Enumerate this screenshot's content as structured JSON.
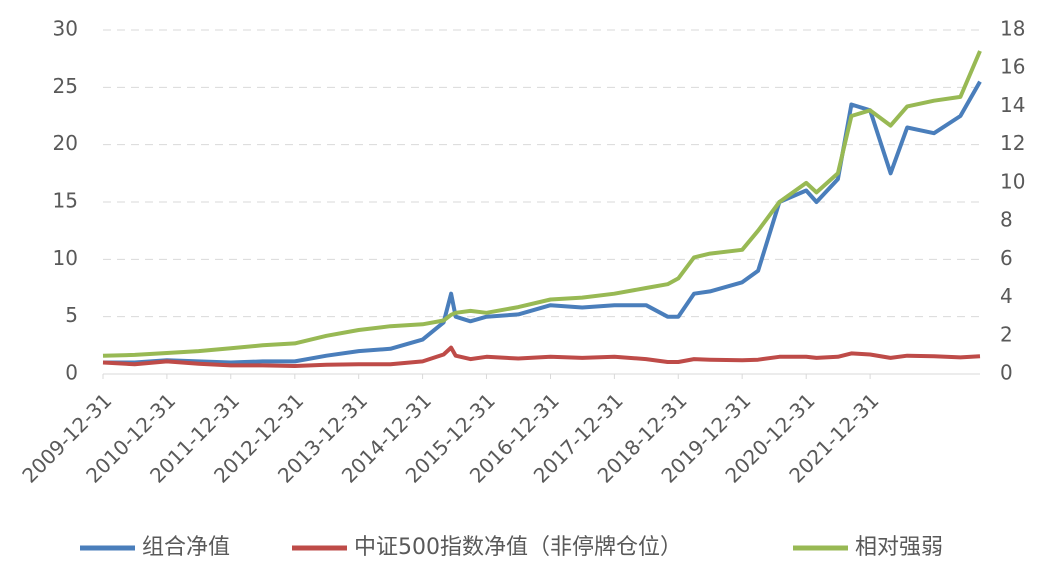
{
  "chart_data": {
    "type": "line",
    "x": [
      "2009-12-31",
      "2010-06-30",
      "2010-12-31",
      "2011-06-30",
      "2011-12-31",
      "2012-06-30",
      "2012-12-31",
      "2013-06-30",
      "2013-12-31",
      "2014-06-30",
      "2014-12-31",
      "2015-04-30",
      "2015-06-12",
      "2015-07-08",
      "2015-09-30",
      "2015-12-31",
      "2016-06-30",
      "2016-12-31",
      "2017-06-30",
      "2017-12-31",
      "2018-06-30",
      "2018-10-31",
      "2018-12-31",
      "2019-03-31",
      "2019-06-30",
      "2019-12-31",
      "2020-03-31",
      "2020-07-31",
      "2020-12-31",
      "2021-02-28",
      "2021-06-30",
      "2021-09-15",
      "2021-12-31",
      "2022-04-27",
      "2022-07-31",
      "2022-12-31",
      "2023-05-31",
      "2023-09-20"
    ],
    "series": [
      {
        "name": "组合净值",
        "color": "#4a7ebb",
        "values": [
          1.0,
          1.0,
          1.2,
          1.1,
          1.0,
          1.1,
          1.1,
          1.6,
          2.0,
          2.2,
          3.0,
          4.5,
          7.0,
          5.0,
          4.6,
          5.0,
          5.2,
          6.0,
          5.8,
          6.0,
          6.0,
          5.0,
          5.0,
          7.0,
          7.2,
          8.0,
          9.0,
          15.0,
          16.0,
          15.0,
          17.0,
          23.5,
          23.0,
          17.5,
          21.5,
          21.0,
          22.5,
          25.5
        ]
      },
      {
        "name": "中证500指数净值（非停牌仓位）",
        "color": "#be4b48",
        "values": [
          1.0,
          0.85,
          1.1,
          0.9,
          0.75,
          0.75,
          0.7,
          0.8,
          0.85,
          0.85,
          1.1,
          1.7,
          2.3,
          1.6,
          1.3,
          1.5,
          1.35,
          1.5,
          1.4,
          1.5,
          1.3,
          1.05,
          1.05,
          1.3,
          1.25,
          1.2,
          1.25,
          1.5,
          1.5,
          1.4,
          1.5,
          1.8,
          1.7,
          1.4,
          1.6,
          1.55,
          1.45,
          1.55
        ]
      },
      {
        "name": "相对强弱",
        "color": "#98b954",
        "axis": "y2",
        "values": [
          0.95,
          1.0,
          1.1,
          1.2,
          1.35,
          1.5,
          1.6,
          2.0,
          2.3,
          2.5,
          2.6,
          2.8,
          3.1,
          3.2,
          3.3,
          3.2,
          3.5,
          3.9,
          4.0,
          4.2,
          4.5,
          4.7,
          5.0,
          6.1,
          6.3,
          6.5,
          7.5,
          9.0,
          10.0,
          9.5,
          10.5,
          13.5,
          13.8,
          13.0,
          14.0,
          14.3,
          14.5,
          16.9
        ]
      }
    ],
    "xlim": [
      "2009-12-31",
      "2023-09-20"
    ],
    "xticks": [
      "2009-12-31",
      "2010-12-31",
      "2011-12-31",
      "2012-12-31",
      "2013-12-31",
      "2014-12-31",
      "2015-12-31",
      "2016-12-31",
      "2017-12-31",
      "2018-12-31",
      "2019-12-31",
      "2020-12-31",
      "2021-12-31"
    ],
    "ylim": [
      0,
      30
    ],
    "yticks": [
      0,
      5,
      10,
      15,
      20,
      25,
      30
    ],
    "y2lim": [
      0,
      18
    ],
    "y2ticks": [
      0,
      2,
      4,
      6,
      8,
      10,
      12,
      14,
      16,
      18
    ],
    "grid": true
  }
}
